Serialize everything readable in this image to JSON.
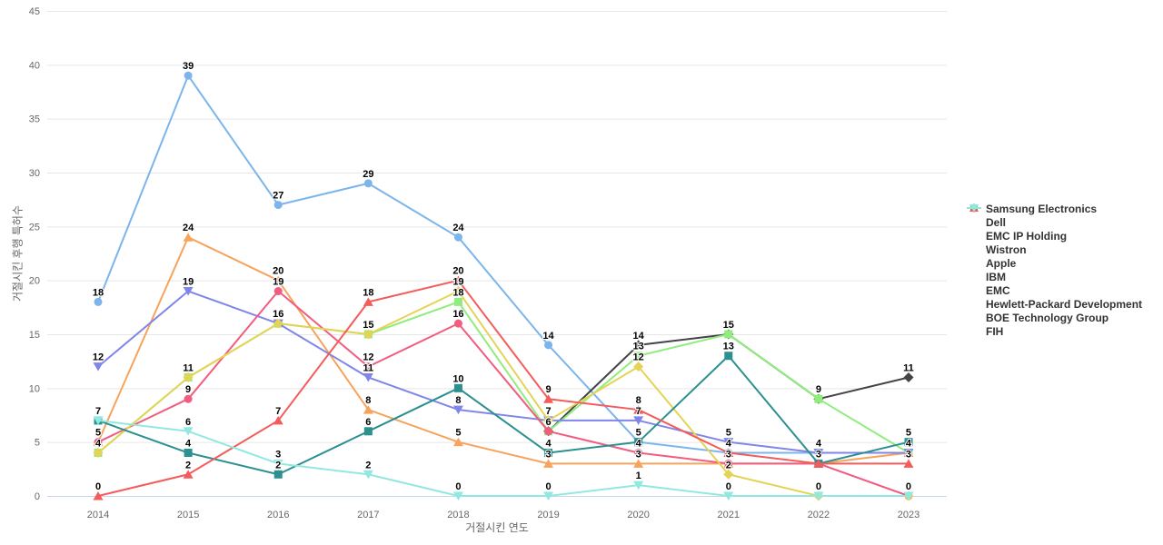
{
  "chart_data": {
    "type": "line",
    "title": "",
    "xlabel": "거절시킨 연도",
    "ylabel": "거절시킨 후행 특허수",
    "x_labels": [
      "2014",
      "2015",
      "2016",
      "2017",
      "2018",
      "2019",
      "2020",
      "2021",
      "2022",
      "2023"
    ],
    "y_ticks": [
      0,
      5,
      10,
      15,
      20,
      25,
      30,
      35,
      40,
      45
    ],
    "ylim": [
      0,
      45
    ],
    "grid": true,
    "legend_position": "right",
    "data_labels": true,
    "axis_line_color": "#ccd6eb",
    "grid_color": "#e6e6e6",
    "axis_text_color": "#666666",
    "series": [
      {
        "name": "Samsung Electronics",
        "color": "#7cb5ec",
        "symbol": "circle",
        "values": [
          18,
          39,
          27,
          29,
          24,
          14,
          5,
          4,
          4,
          4
        ]
      },
      {
        "name": "Dell",
        "color": "#434348",
        "symbol": "diamond",
        "values": [
          null,
          null,
          null,
          null,
          null,
          6,
          14,
          15,
          9,
          11
        ]
      },
      {
        "name": "EMC IP Holding",
        "color": "#90ed7d",
        "symbol": "square",
        "values": [
          4,
          11,
          16,
          15,
          18,
          6,
          13,
          15,
          9,
          4
        ]
      },
      {
        "name": "Wistron",
        "color": "#f7a35c",
        "symbol": "triangle",
        "values": [
          5,
          24,
          20,
          8,
          5,
          3,
          3,
          3,
          3,
          4
        ]
      },
      {
        "name": "Apple",
        "color": "#8085e9",
        "symbol": "triangle-down",
        "values": [
          12,
          19,
          16,
          11,
          8,
          7,
          7,
          5,
          4,
          4
        ]
      },
      {
        "name": "IBM",
        "color": "#f15c80",
        "symbol": "circle",
        "values": [
          5,
          9,
          19,
          12,
          16,
          6,
          4,
          3,
          3,
          0
        ]
      },
      {
        "name": "EMC",
        "color": "#e4d354",
        "symbol": "diamond",
        "values": [
          4,
          11,
          16,
          15,
          19,
          7,
          12,
          2,
          0,
          0
        ]
      },
      {
        "name": "Hewlett-Packard Development",
        "color": "#2b908f",
        "symbol": "square",
        "values": [
          7,
          4,
          2,
          6,
          10,
          4,
          5,
          13,
          3,
          5
        ]
      },
      {
        "name": "BOE Technology Group",
        "color": "#f45b5b",
        "symbol": "triangle",
        "values": [
          0,
          2,
          7,
          18,
          20,
          9,
          8,
          4,
          3,
          3
        ]
      },
      {
        "name": "FIH",
        "color": "#91e8e1",
        "symbol": "triangle-down",
        "values": [
          7,
          6,
          3,
          2,
          0,
          0,
          1,
          0,
          0,
          0
        ]
      }
    ]
  }
}
